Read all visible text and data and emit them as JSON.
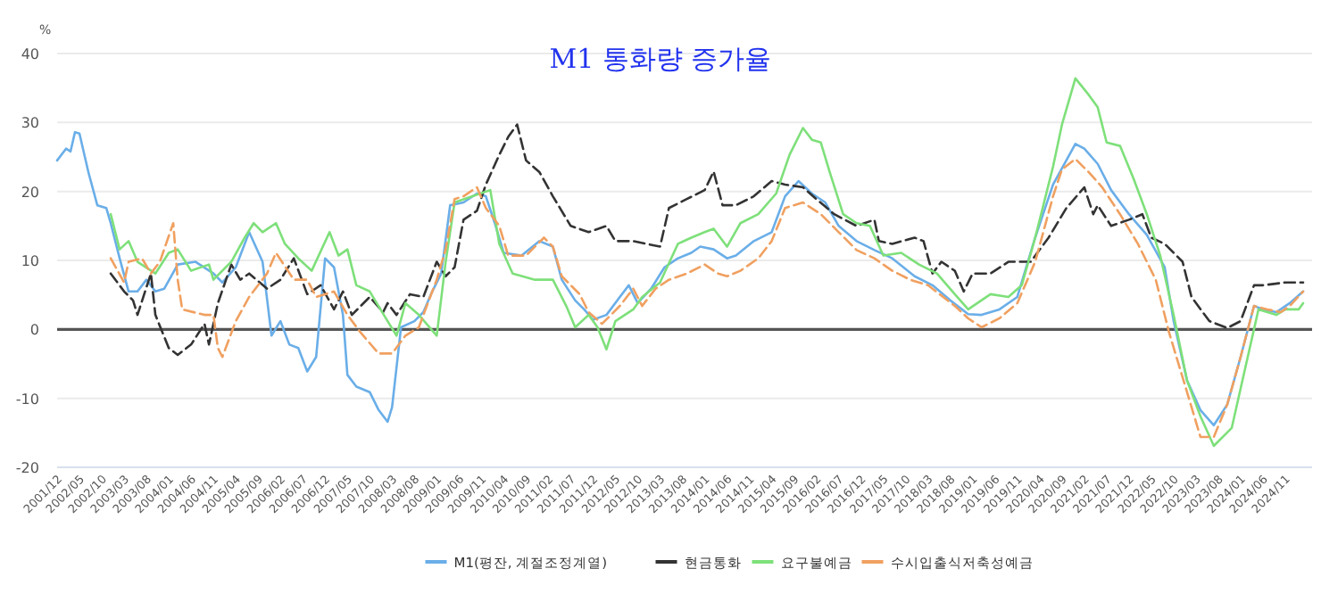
{
  "chart_data": {
    "type": "line",
    "title": "M1 통화량 증가율",
    "ylabel": "%",
    "xlim": [
      "2001-12",
      "2025-05"
    ],
    "ylim": [
      -20,
      40
    ],
    "yticks": [
      -20,
      -10,
      0,
      10,
      20,
      30,
      40
    ],
    "xticks": [
      {
        "value": "2001-12",
        "label": "2001/12"
      },
      {
        "value": "2002-05",
        "label": "2002/05"
      },
      {
        "value": "2002-10",
        "label": "2002/10"
      },
      {
        "value": "2003-03",
        "label": "2003/03"
      },
      {
        "value": "2003-08",
        "label": "2003/08"
      },
      {
        "value": "2004-01",
        "label": "2004/01"
      },
      {
        "value": "2004-06",
        "label": "2004/06"
      },
      {
        "value": "2004-11",
        "label": "2004/11"
      },
      {
        "value": "2005-04",
        "label": "2005/04"
      },
      {
        "value": "2005-09",
        "label": "2005/09"
      },
      {
        "value": "2006-02",
        "label": "2006/02"
      },
      {
        "value": "2006-07",
        "label": "2006/07"
      },
      {
        "value": "2006-12",
        "label": "2006/12"
      },
      {
        "value": "2007-05",
        "label": "2007/05"
      },
      {
        "value": "2007-10",
        "label": "2007/10"
      },
      {
        "value": "2008-03",
        "label": "2008/03"
      },
      {
        "value": "2008-08",
        "label": "2008/08"
      },
      {
        "value": "2009-01",
        "label": "2009/01"
      },
      {
        "value": "2009-06",
        "label": "2009/06"
      },
      {
        "value": "2009-11",
        "label": "2009/11"
      },
      {
        "value": "2010-04",
        "label": "2010/04"
      },
      {
        "value": "2010-09",
        "label": "2010/09"
      },
      {
        "value": "2011-02",
        "label": "2011/02"
      },
      {
        "value": "2011-07",
        "label": "2011/07"
      },
      {
        "value": "2011-12",
        "label": "2011/12"
      },
      {
        "value": "2012-05",
        "label": "2012/05"
      },
      {
        "value": "2012-10",
        "label": "2012/10"
      },
      {
        "value": "2013-03",
        "label": "2013/03"
      },
      {
        "value": "2013-08",
        "label": "2013/08"
      },
      {
        "value": "2014-01",
        "label": "2014/01"
      },
      {
        "value": "2014-06",
        "label": "2014/06"
      },
      {
        "value": "2014-11",
        "label": "2014/11"
      },
      {
        "value": "2015-04",
        "label": "2015/04"
      },
      {
        "value": "2015-09",
        "label": "2015/09"
      },
      {
        "value": "2016-02",
        "label": "2016/02"
      },
      {
        "value": "2016-07",
        "label": "2016/07"
      },
      {
        "value": "2016-12",
        "label": "2016/12"
      },
      {
        "value": "2017-05",
        "label": "2017/05"
      },
      {
        "value": "2017-10",
        "label": "2017/10"
      },
      {
        "value": "2018-03",
        "label": "2018/03"
      },
      {
        "value": "2018-08",
        "label": "2018/08"
      },
      {
        "value": "2019-01",
        "label": "2019/01"
      },
      {
        "value": "2019-06",
        "label": "2019/06"
      },
      {
        "value": "2019-11",
        "label": "2019/11"
      },
      {
        "value": "2020-04",
        "label": "2020/04"
      },
      {
        "value": "2020-09",
        "label": "2020/09"
      },
      {
        "value": "2021-02",
        "label": "2021/02"
      },
      {
        "value": "2021-07",
        "label": "2021/07"
      },
      {
        "value": "2021-12",
        "label": "2021/12"
      },
      {
        "value": "2022-05",
        "label": "2022/05"
      },
      {
        "value": "2022-10",
        "label": "2022/10"
      },
      {
        "value": "2023-03",
        "label": "2023/03"
      },
      {
        "value": "2023-08",
        "label": "2023/08"
      },
      {
        "value": "2024-01",
        "label": "2024/01"
      },
      {
        "value": "2024-06",
        "label": "2024/06"
      },
      {
        "value": "2024-11",
        "label": "2024/11"
      }
    ],
    "grid": "y",
    "legend": "bottom",
    "marker": "none",
    "ref_lines": [
      {
        "axis": "y",
        "value": 0,
        "color": "#555555"
      }
    ],
    "series": [
      {
        "name": "M1(평잔, 계절조정계열)",
        "color": "#6aaee8",
        "line_style": "solid",
        "x": [
          "2001-12",
          "2002-02",
          "2002-03",
          "2002-04",
          "2002-05",
          "2002-07",
          "2002-09",
          "2002-11",
          "2002-12",
          "2003-02",
          "2003-04",
          "2003-06",
          "2003-08",
          "2003-10",
          "2003-12",
          "2004-03",
          "2004-07",
          "2004-11",
          "2005-01",
          "2005-04",
          "2005-07",
          "2005-10",
          "2005-12",
          "2006-02",
          "2006-04",
          "2006-06",
          "2006-08",
          "2006-10",
          "2006-12",
          "2007-02",
          "2007-04",
          "2007-05",
          "2007-07",
          "2007-10",
          "2007-12",
          "2008-02",
          "2008-03",
          "2008-05",
          "2008-08",
          "2008-10",
          "2008-12",
          "2009-02",
          "2009-04",
          "2009-07",
          "2009-10",
          "2009-12",
          "2010-02",
          "2010-04",
          "2010-08",
          "2010-12",
          "2011-03",
          "2011-05",
          "2011-08",
          "2011-10",
          "2011-12",
          "2012-03",
          "2012-06",
          "2012-08",
          "2012-10",
          "2013-01",
          "2013-04",
          "2013-07",
          "2013-10",
          "2013-12",
          "2014-03",
          "2014-06",
          "2014-08",
          "2014-12",
          "2015-04",
          "2015-07",
          "2015-10",
          "2016-01",
          "2016-04",
          "2016-07",
          "2016-11",
          "2017-03",
          "2017-07",
          "2017-12",
          "2018-04",
          "2018-08",
          "2018-12",
          "2019-03",
          "2019-07",
          "2019-11",
          "2020-03",
          "2020-07",
          "2020-12",
          "2021-02",
          "2021-05",
          "2021-08",
          "2021-12",
          "2022-04",
          "2022-08",
          "2022-10",
          "2023-01",
          "2023-04",
          "2023-07",
          "2023-10",
          "2024-01",
          "2024-04",
          "2024-06",
          "2024-09",
          "2024-12",
          "2025-03"
        ],
        "values": [
          24.5,
          26.2,
          25.8,
          28.6,
          28.4,
          22.8,
          18,
          17.6,
          15.4,
          10.3,
          5.5,
          5.5,
          7.2,
          5.5,
          5.9,
          9.4,
          9.8,
          8.1,
          6.8,
          9,
          14.1,
          9.8,
          -0.9,
          1.2,
          -2.2,
          -2.7,
          -6.1,
          -4,
          10.3,
          9,
          2.1,
          -6.6,
          -8.3,
          -9.1,
          -11.7,
          -13.4,
          -11.3,
          0.3,
          1.2,
          2.5,
          5.5,
          8.1,
          18,
          18.4,
          19.7,
          19.3,
          15.4,
          11.1,
          10.7,
          12.8,
          12,
          7.2,
          4.2,
          2.9,
          1.4,
          2.1,
          4.7,
          6.4,
          3.8,
          5.9,
          9,
          10.3,
          11.1,
          12,
          11.6,
          10.3,
          10.7,
          12.8,
          14.1,
          19.3,
          21.5,
          19.7,
          18.4,
          15,
          12.8,
          11.5,
          10.3,
          7.7,
          6.4,
          4.2,
          2.2,
          2.1,
          2.9,
          4.7,
          13.3,
          21,
          26.9,
          26.2,
          24,
          20.2,
          16.7,
          13.7,
          9,
          1.2,
          -7.4,
          -11.7,
          -13.9,
          -10.9,
          -4,
          3.4,
          2.9,
          2.5,
          3.8,
          5.5
        ]
      },
      {
        "name": "현금통화",
        "color": "#333333",
        "line_style": "dashed",
        "x": [
          "2002-12",
          "2003-03",
          "2003-05",
          "2003-06",
          "2003-09",
          "2003-10",
          "2004-01",
          "2004-03",
          "2004-06",
          "2004-09",
          "2004-10",
          "2004-12",
          "2005-03",
          "2005-05",
          "2005-07",
          "2005-11",
          "2006-02",
          "2006-05",
          "2006-08",
          "2006-11",
          "2007-02",
          "2007-04",
          "2007-06",
          "2007-10",
          "2008-01",
          "2008-02",
          "2008-04",
          "2008-07",
          "2008-10",
          "2009-01",
          "2009-03",
          "2009-05",
          "2009-07",
          "2009-10",
          "2009-12",
          "2010-03",
          "2010-05",
          "2010-07",
          "2010-09",
          "2010-12",
          "2011-03",
          "2011-07",
          "2011-11",
          "2012-03",
          "2012-05",
          "2012-09",
          "2012-12",
          "2013-03",
          "2013-05",
          "2013-09",
          "2014-01",
          "2014-03",
          "2014-05",
          "2014-08",
          "2014-12",
          "2015-04",
          "2015-07",
          "2015-11",
          "2016-02",
          "2016-06",
          "2016-11",
          "2017-03",
          "2017-04",
          "2017-07",
          "2017-12",
          "2018-02",
          "2018-04",
          "2018-06",
          "2018-09",
          "2018-11",
          "2019-01",
          "2019-05",
          "2019-09",
          "2020-02",
          "2020-06",
          "2020-10",
          "2021-02",
          "2021-04",
          "2021-05",
          "2021-08",
          "2021-12",
          "2022-03",
          "2022-05",
          "2022-08",
          "2022-12",
          "2023-02",
          "2023-06",
          "2023-10",
          "2024-01",
          "2024-04",
          "2024-06",
          "2024-11",
          "2025-03"
        ],
        "values": [
          8.1,
          5.5,
          4.2,
          2.1,
          8.1,
          2.1,
          -2.7,
          -3.7,
          -2.2,
          0.8,
          -2.2,
          3.8,
          9.4,
          7.2,
          8.1,
          5.9,
          7.2,
          10.3,
          5.1,
          6.4,
          2.9,
          5.5,
          2.1,
          4.7,
          2.5,
          3.8,
          2.1,
          5.1,
          4.7,
          9.8,
          7.7,
          9,
          15.9,
          17.2,
          21,
          25.3,
          27.9,
          29.7,
          24.5,
          22.8,
          19.3,
          15,
          14.1,
          15,
          12.8,
          12.8,
          12.4,
          12,
          17.6,
          18.9,
          20.2,
          22.9,
          18,
          18,
          19.3,
          21.5,
          21,
          20.6,
          18.9,
          16.7,
          15,
          15.9,
          12.8,
          12.4,
          13.3,
          12.8,
          8.1,
          9.8,
          8.5,
          5.5,
          8.1,
          8.1,
          9.8,
          9.8,
          13.3,
          17.6,
          20.6,
          16.7,
          18,
          15,
          15.9,
          16.7,
          13.3,
          12.4,
          9.8,
          4.7,
          1.2,
          0.2,
          1.2,
          6.4,
          6.4,
          6.8,
          6.8
        ]
      },
      {
        "name": "요구불예금",
        "color": "#7ee07a",
        "line_style": "solid",
        "x": [
          "2002-12",
          "2003-02",
          "2003-04",
          "2003-06",
          "2003-10",
          "2004-01",
          "2004-03",
          "2004-06",
          "2004-10",
          "2004-11",
          "2005-03",
          "2005-06",
          "2005-08",
          "2005-10",
          "2006-01",
          "2006-03",
          "2006-06",
          "2006-09",
          "2007-01",
          "2007-03",
          "2007-05",
          "2007-07",
          "2007-10",
          "2008-02",
          "2008-04",
          "2008-06",
          "2008-09",
          "2009-01",
          "2009-03",
          "2009-05",
          "2009-09",
          "2010-01",
          "2010-03",
          "2010-06",
          "2010-11",
          "2011-03",
          "2011-06",
          "2011-08",
          "2011-11",
          "2012-01",
          "2012-03",
          "2012-05",
          "2012-09",
          "2012-11",
          "2013-03",
          "2013-07",
          "2013-10",
          "2014-01",
          "2014-03",
          "2014-06",
          "2014-09",
          "2015-01",
          "2015-05",
          "2015-08",
          "2015-11",
          "2016-01",
          "2016-03",
          "2016-05",
          "2016-08",
          "2016-11",
          "2017-02",
          "2017-05",
          "2017-09",
          "2018-01",
          "2018-05",
          "2018-09",
          "2018-12",
          "2019-05",
          "2019-09",
          "2019-12",
          "2020-03",
          "2020-07",
          "2020-09",
          "2020-12",
          "2021-03",
          "2021-05",
          "2021-07",
          "2021-10",
          "2022-01",
          "2022-04",
          "2022-07",
          "2022-10",
          "2023-01",
          "2023-04",
          "2023-07",
          "2023-11",
          "2024-02",
          "2024-05",
          "2024-09",
          "2024-11",
          "2025-02",
          "2025-03"
        ],
        "values": [
          16.7,
          11.6,
          12.8,
          9.8,
          8.1,
          11.1,
          11.6,
          8.5,
          9.4,
          7.2,
          9.8,
          13.3,
          15.4,
          14.1,
          15.4,
          12.4,
          10.3,
          8.5,
          14.1,
          10.7,
          11.6,
          6.4,
          5.5,
          1.2,
          -0.9,
          3.8,
          2.1,
          -0.9,
          9.8,
          18.4,
          19.3,
          20.2,
          12.4,
          8.1,
          7.2,
          7.2,
          3.4,
          0.3,
          2.1,
          0.3,
          -2.9,
          1.2,
          2.9,
          4.7,
          6.8,
          12.4,
          13.3,
          14.1,
          14.6,
          12,
          15.4,
          16.7,
          19.7,
          25.3,
          29.2,
          27.5,
          27.1,
          22.8,
          16.7,
          15.4,
          15,
          10.7,
          11.1,
          9.4,
          8.1,
          5.1,
          2.9,
          5.1,
          4.7,
          6.4,
          13.3,
          23.6,
          29.7,
          36.4,
          34,
          32.2,
          27.1,
          26.6,
          21.9,
          16.7,
          10.7,
          2.1,
          -7.4,
          -12.6,
          -16.9,
          -14.3,
          -5.7,
          2.9,
          2.1,
          2.9,
          2.9,
          3.8
        ]
      },
      {
        "name": "수시입출식저축성예금",
        "color": "#f0a060",
        "line_style": "dashed",
        "x": [
          "2002-12",
          "2003-03",
          "2003-04",
          "2003-07",
          "2003-09",
          "2003-11",
          "2004-02",
          "2004-03",
          "2004-04",
          "2004-09",
          "2004-11",
          "2004-12",
          "2005-01",
          "2005-04",
          "2005-07",
          "2005-11",
          "2006-01",
          "2006-05",
          "2006-08",
          "2006-10",
          "2007-02",
          "2007-05",
          "2007-08",
          "2007-12",
          "2008-03",
          "2008-06",
          "2008-09",
          "2008-11",
          "2009-01",
          "2009-03",
          "2009-05",
          "2009-07",
          "2009-10",
          "2009-12",
          "2010-03",
          "2010-05",
          "2010-09",
          "2011-01",
          "2011-03",
          "2011-05",
          "2011-09",
          "2011-11",
          "2012-02",
          "2012-06",
          "2012-09",
          "2012-11",
          "2013-02",
          "2013-05",
          "2013-09",
          "2014-01",
          "2014-04",
          "2014-06",
          "2014-09",
          "2015-01",
          "2015-04",
          "2015-07",
          "2015-11",
          "2016-03",
          "2016-07",
          "2016-11",
          "2017-03",
          "2017-07",
          "2017-11",
          "2018-03",
          "2018-09",
          "2018-12",
          "2019-03",
          "2019-07",
          "2019-11",
          "2020-03",
          "2020-07",
          "2020-09",
          "2020-12",
          "2021-03",
          "2021-06",
          "2021-10",
          "2022-02",
          "2022-06",
          "2022-09",
          "2023-01",
          "2023-04",
          "2023-07",
          "2023-10",
          "2024-01",
          "2024-04",
          "2024-07",
          "2024-10",
          "2024-12",
          "2025-03"
        ],
        "values": [
          10.3,
          6.8,
          9.8,
          10.3,
          8.1,
          9.8,
          15.4,
          7.2,
          2.9,
          2.1,
          2.1,
          -2.7,
          -4,
          1.2,
          4.7,
          8.1,
          11.1,
          7.2,
          7.2,
          4.7,
          5.5,
          2.1,
          -0.5,
          -3.5,
          -3.5,
          -0.9,
          0.3,
          3.8,
          7.2,
          11.6,
          18.9,
          19.3,
          20.6,
          17.6,
          15,
          10.7,
          10.7,
          13.3,
          12,
          7.7,
          5.1,
          2.5,
          0.8,
          3.4,
          5.9,
          3.4,
          5.9,
          7.2,
          8.1,
          9.4,
          8.1,
          7.7,
          8.5,
          10.3,
          12.8,
          17.6,
          18.4,
          16.7,
          14.1,
          11.5,
          10.3,
          8.5,
          7.2,
          6.4,
          3.4,
          1.6,
          0.3,
          1.6,
          3.8,
          9.8,
          19.3,
          23.2,
          24.7,
          22.8,
          20.6,
          16.7,
          12.4,
          7.2,
          -0.5,
          -9.1,
          -15.6,
          -15.6,
          -10.9,
          -4,
          3.4,
          2.9,
          2.5,
          3.4,
          5.5
        ]
      }
    ]
  }
}
